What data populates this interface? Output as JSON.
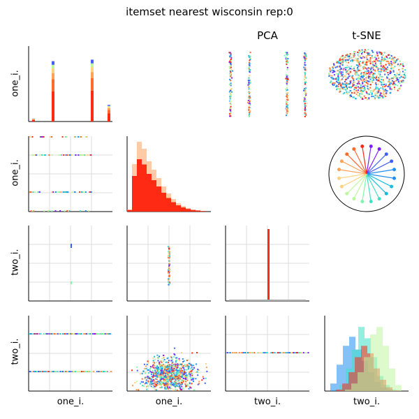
{
  "title": "itemset nearest wisconsin rep:0",
  "column_titles": {
    "pca": "PCA",
    "tsne": "t-SNE"
  },
  "variables": [
    "one_i.",
    "one_i.",
    "two_i.",
    "two_i."
  ],
  "palette": [
    "#7f1fff",
    "#3f5ffb",
    "#1f8ef1",
    "#17bce0",
    "#40e0c8",
    "#7ff8a8",
    "#bff6a0",
    "#ffd27f",
    "#ffa256",
    "#ff6b2b",
    "#ff2a14"
  ],
  "chart_data": [
    {
      "type": "bar",
      "panel": "one_i. / one_i. (diagonal)",
      "categories": [
        "0",
        "1",
        "2",
        "3"
      ],
      "series": [
        {
          "values": [
            4,
            80,
            82,
            22
          ]
        }
      ],
      "note_colors": "stacked colored histogram, dominant red"
    },
    {
      "type": "scatter",
      "panel": "one_i. vs one_i.",
      "x_levels": [
        0,
        1,
        2,
        3
      ],
      "y_levels": [
        0,
        1,
        2,
        3
      ]
    },
    {
      "type": "bar",
      "panel": "one_i. (row 2 diagonal histogram)",
      "values": [
        3,
        68,
        100,
        90,
        72,
        60,
        48,
        36,
        26,
        18,
        12,
        8,
        5,
        3,
        2,
        1
      ]
    },
    {
      "type": "bar",
      "panel": "two_i. (row 3 diagonal histogram)",
      "categories": [
        "0",
        "1",
        "2"
      ],
      "values": [
        1,
        100,
        1
      ]
    },
    {
      "type": "scatter",
      "panel": "one_i. vs two_i. (continuous)",
      "description_count": 1800
    },
    {
      "type": "bar",
      "panel": "two_i. (row 4 diagonal histogram)",
      "series": [
        {
          "name": "",
          "color": "#1f8ef1",
          "values": [
            10,
            35,
            60,
            72,
            55,
            40,
            25,
            12,
            5,
            2
          ]
        },
        {
          "name": "",
          "color": "#40e0c8",
          "values": [
            0,
            8,
            30,
            55,
            85,
            70,
            45,
            20,
            8,
            2
          ]
        },
        {
          "name": "",
          "color": "#ff2a14",
          "values": [
            2,
            10,
            25,
            45,
            60,
            50,
            30,
            15,
            5,
            1
          ]
        },
        {
          "name": "",
          "color": "#bff6a0",
          "values": [
            0,
            2,
            10,
            25,
            45,
            75,
            85,
            60,
            30,
            8
          ]
        }
      ]
    }
  ]
}
